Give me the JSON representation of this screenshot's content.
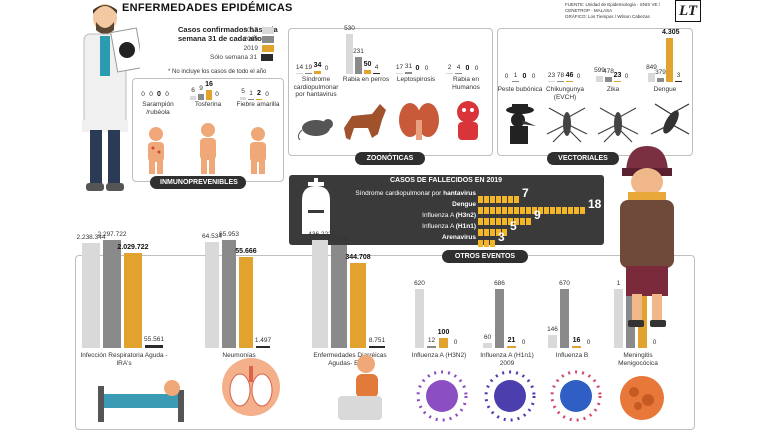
{
  "header": {
    "title": "ENFERMEDADES EPIDÉMICAS",
    "source": "FUENTE: Unidad de Epidemiología · SNIS VE / CENETROP · MALASA",
    "graphic": "GRÁFICO: Los Tiempos / Wilson Cabezas",
    "logo": "LT"
  },
  "legend": {
    "title": "Casos confirmados hasta la semana 31 de cada año*",
    "items": [
      {
        "label": "2017",
        "color": "#d9d9d9"
      },
      {
        "label": "2018",
        "color": "#8a8a8a"
      },
      {
        "label": "2019",
        "color": "#e2a32e"
      },
      {
        "label": "Sólo semana 31",
        "color": "#2a2a2a"
      }
    ],
    "note": "* No incluye los casos de todo el año"
  },
  "sections": {
    "inmunoprevenibles": "INMUNOPREVENIBLES",
    "zoonoticas": "ZOONÓTICAS",
    "vectoriales": "VECTORIALES",
    "otros": "OTROS EVENTOS"
  },
  "inmuno": [
    {
      "name": "Sarampión /rubéola",
      "values": [
        "0",
        "0",
        "0",
        "0"
      ]
    },
    {
      "name": "Tosferina",
      "values": [
        "6",
        "9",
        "16",
        "0"
      ]
    },
    {
      "name": "Fiebre amarilla",
      "values": [
        "5",
        "1",
        "2",
        "0"
      ]
    }
  ],
  "zoono": [
    {
      "name": "Síndrome cardiopulmonar por hantavirus",
      "values": [
        "14",
        "19",
        "34",
        "0"
      ]
    },
    {
      "name": "Rabia en perros",
      "values": [
        "530",
        "231",
        "50",
        "4"
      ]
    },
    {
      "name": "Leptospirosis",
      "values": [
        "17",
        "31",
        "0",
        "0"
      ]
    },
    {
      "name": "Rabia en Humanos",
      "values": [
        "2",
        "4",
        "0",
        "0"
      ]
    }
  ],
  "vector": [
    {
      "name": "Peste bubónica",
      "values": [
        "0",
        "1",
        "0",
        "0"
      ]
    },
    {
      "name": "Chikungunya (EVCH)",
      "values": [
        "23",
        "78",
        "46",
        "0"
      ]
    },
    {
      "name": "Zika",
      "values": [
        "599",
        "478",
        "23",
        "0"
      ]
    },
    {
      "name": "Dengue",
      "values": [
        "849",
        "379",
        "4.305",
        "3"
      ]
    }
  ],
  "fallecidos": {
    "title": "CASOS DE FALLECIDOS EN 2019",
    "rows": [
      {
        "label": "Síndrome cardiopulmonar por ",
        "label_bold": "hantavirus",
        "value": 7
      },
      {
        "label": "",
        "label_bold": "Dengue",
        "value": 18
      },
      {
        "label": "Influenza A ",
        "label_bold": "(H3n2)",
        "value": 9
      },
      {
        "label": "Influenza A ",
        "label_bold": "(H1n1)",
        "value": 5
      },
      {
        "label": "",
        "label_bold": "Arenavirus",
        "value": 3
      }
    ]
  },
  "otros": [
    {
      "name": "Infección Respiratoria Aguda - IRA's",
      "values": [
        "2.238.344",
        "2.297.722",
        "2.029.722",
        "55.561"
      ]
    },
    {
      "name": "Neumonías",
      "values": [
        "64.534",
        "65.953",
        "55.666",
        "1.497"
      ]
    },
    {
      "name": "Enfermedades Diarréicas Agudas- EDA's",
      "values": [
        "436.222",
        "417.061",
        "344.708",
        "8.751"
      ]
    },
    {
      "name": "Influenza A (H3N2)",
      "values": [
        "620",
        "12",
        "100",
        "0"
      ]
    },
    {
      "name": "Influenza A (H1n1) 2009",
      "values": [
        "60",
        "686",
        "21",
        "0"
      ]
    },
    {
      "name": "Influenza B",
      "values": [
        "146",
        "670",
        "16",
        "0"
      ]
    },
    {
      "name": "Meningitis Menigocócica",
      "values": [
        "1",
        "1",
        "1",
        "0"
      ]
    }
  ]
}
